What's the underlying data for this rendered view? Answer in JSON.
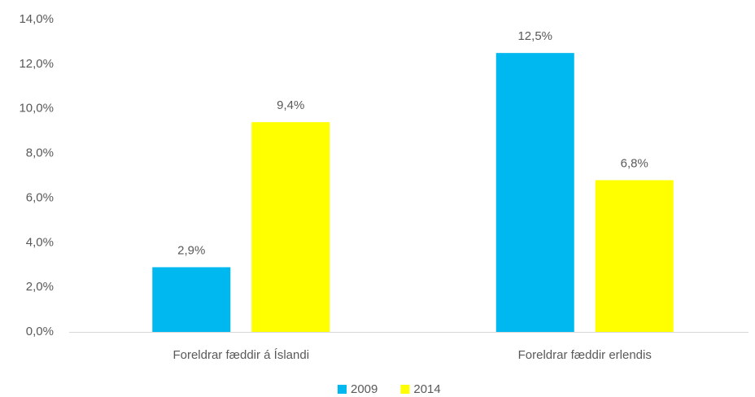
{
  "chart_data": {
    "type": "bar",
    "categories": [
      "Foreldrar fæddir á Íslandi",
      "Foreldrar fæddir erlendis"
    ],
    "series": [
      {
        "name": "2009",
        "color": "#00b8f0",
        "values": [
          2.9,
          12.5
        ],
        "value_labels": [
          "2,9%",
          "12,5%"
        ]
      },
      {
        "name": "2014",
        "color": "#ffff00",
        "values": [
          9.4,
          6.8
        ],
        "value_labels": [
          "9,4%",
          "6,8%"
        ]
      }
    ],
    "ylim": [
      0,
      14
    ],
    "yticks": [
      {
        "value": 0,
        "label": "0,0%"
      },
      {
        "value": 2,
        "label": "2,0%"
      },
      {
        "value": 4,
        "label": "4,0%"
      },
      {
        "value": 6,
        "label": "6,0%"
      },
      {
        "value": 8,
        "label": "8,0%"
      },
      {
        "value": 10,
        "label": "10,0%"
      },
      {
        "value": 12,
        "label": "12,0%"
      },
      {
        "value": 14,
        "label": "14,0%"
      }
    ],
    "grid": false,
    "legend": "bottom"
  }
}
